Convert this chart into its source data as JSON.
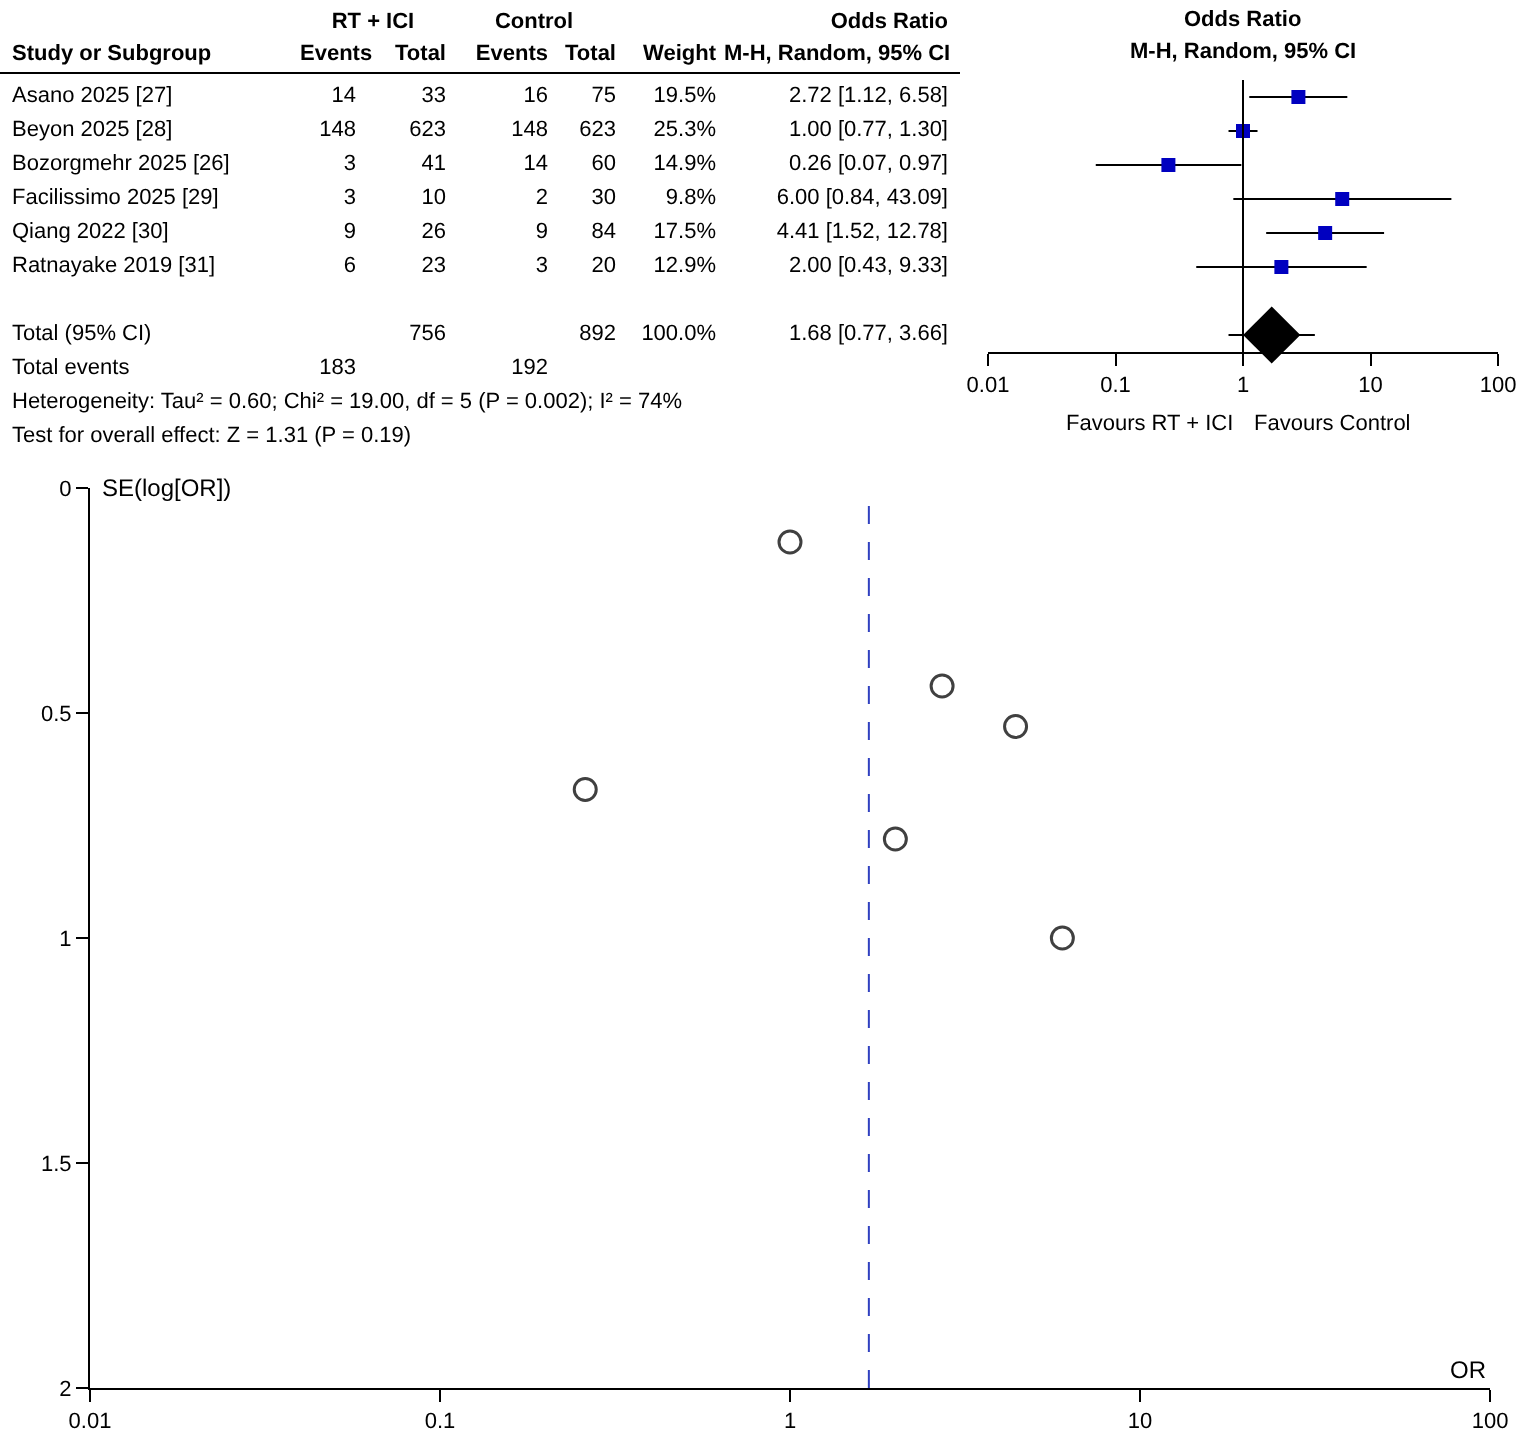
{
  "chart_data": [
    {
      "type": "other",
      "categories": [
        "Study or Subgroup",
        "Events",
        "Total",
        "Events",
        "Total",
        "Weight",
        "M-H, Random, 95% CI"
      ],
      "cell_labels": [
        [
          "Asano 2025 [27]",
          "14",
          "33",
          "16",
          "75",
          "19.5%",
          "2.72 [1.12, 6.58]"
        ],
        [
          "Beyon 2025 [28]",
          "148",
          "623",
          "148",
          "623",
          "25.3%",
          "1.00 [0.77, 1.30]"
        ],
        [
          "Bozorgmehr 2025 [26]",
          "3",
          "41",
          "14",
          "60",
          "14.9%",
          "0.26 [0.07, 0.97]"
        ],
        [
          "Facilissimo 2025 [29]",
          "3",
          "10",
          "2",
          "30",
          "9.8%",
          "6.00 [0.84, 43.09]"
        ],
        [
          "Qiang 2022 [30]",
          "9",
          "26",
          "9",
          "84",
          "17.5%",
          "4.41 [1.52, 12.78]"
        ],
        [
          "Ratnayake 2019 [31]",
          "6",
          "23",
          "3",
          "20",
          "12.9%",
          "2.00 [0.43, 9.33]"
        ],
        [
          null,
          null,
          null,
          null,
          null,
          null,
          null
        ],
        [
          "Total (95% CI)",
          null,
          "756",
          null,
          "892",
          "100.0%",
          "1.68 [0.77, 3.66]"
        ],
        [
          "Total events",
          "183",
          null,
          "192",
          null,
          null,
          null
        ]
      ],
      "annotations": [
        "RT + ICI",
        "Control",
        "Odds Ratio",
        "Heterogeneity: Tau² = 0.60; Chi² = 19.00, df = 5 (P = 0.002); I² = 74%",
        "Test for overall effect: Z = 1.31 (P = 0.19)"
      ]
    },
    {
      "type": "scatter",
      "orientation": "horizontal",
      "title": "Odds Ratio",
      "subtitle": "M-H, Random, 95% CI",
      "categories": [
        null,
        null,
        null,
        null,
        null,
        null,
        null,
        null
      ],
      "series": [
        {
          "color": "#0000c0",
          "marker": "square",
          "values": [
            2.72,
            1.0,
            0.26,
            6.0,
            4.41,
            2.0,
            null,
            null
          ],
          "errors": [
            [
              1.12,
              6.58
            ],
            [
              0.77,
              1.3
            ],
            [
              0.07,
              0.97
            ],
            [
              0.84,
              43.09
            ],
            [
              1.52,
              12.78
            ],
            [
              0.43,
              9.33
            ],
            null,
            null
          ]
        },
        {
          "color": "#000000",
          "marker": "diamond",
          "values": [
            null,
            null,
            null,
            null,
            null,
            null,
            null,
            1.68
          ],
          "errors": [
            null,
            null,
            null,
            null,
            null,
            null,
            null,
            [
              0.77,
              3.66
            ]
          ]
        }
      ],
      "log": "x",
      "xlim": [
        0.01,
        100
      ],
      "xticks": [
        0.01,
        0.1,
        1,
        10,
        100
      ],
      "tick_labels": "x",
      "grid": false,
      "ref_lines": [
        {
          "axis": "x",
          "value": 1,
          "color": "#000000",
          "line_style": "solid"
        }
      ],
      "annotations": [
        "Favours RT + ICI",
        "Favours Control"
      ]
    },
    {
      "type": "scatter",
      "x": [
        1.0,
        2.72,
        4.41,
        0.26,
        2.0,
        6.0
      ],
      "values": [
        0.12,
        0.44,
        0.53,
        0.67,
        0.78,
        1.0
      ],
      "color": "#404040",
      "marker": "circle",
      "xlabel": "OR",
      "ylabel": "SE(log[OR])",
      "log": "x",
      "xlim": [
        0.01,
        100
      ],
      "xticks": [
        0.01,
        0.1,
        1,
        10,
        100
      ],
      "ylim": [
        2,
        0
      ],
      "yticks": [
        0,
        0.5,
        1,
        1.5,
        2
      ],
      "grid": false,
      "ref_lines": [
        {
          "axis": "x",
          "value": 1.68,
          "color": "#3040c0",
          "line_style": "dashed"
        }
      ]
    }
  ]
}
